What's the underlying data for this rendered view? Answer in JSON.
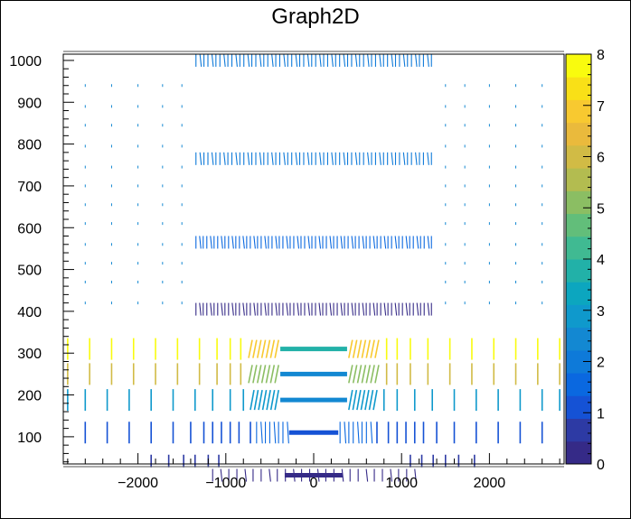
{
  "chart_data": {
    "type": "scatter",
    "title": "Graph2D",
    "xlabel": "",
    "ylabel": "",
    "xlim": [
      -2850,
      2850
    ],
    "ylim": [
      35,
      1015
    ],
    "zlim": [
      0,
      8
    ],
    "x_ticks": [
      -2000,
      -1000,
      0,
      1000,
      2000
    ],
    "x_tick_labels": [
      "−2000",
      "−1000",
      "0",
      "1000",
      "2000"
    ],
    "y_ticks": [
      100,
      200,
      300,
      400,
      500,
      600,
      700,
      800,
      900,
      1000
    ],
    "y_tick_labels": [
      "100",
      "200",
      "300",
      "400",
      "500",
      "600",
      "700",
      "800",
      "900",
      "1000"
    ],
    "colorbar_ticks": [
      0,
      1,
      2,
      3,
      4,
      5,
      6,
      7,
      8
    ],
    "colorbar_tick_labels": [
      "0",
      "1",
      "2",
      "3",
      "4",
      "5",
      "6",
      "7",
      "8"
    ],
    "palette": [
      "#352a87",
      "#2d3aa4",
      "#1552d5",
      "#0a68e0",
      "#0e7ad9",
      "#1388d2",
      "#0f99cc",
      "#0ca6bf",
      "#22b1a8",
      "#40ba92",
      "#62be7a",
      "#8bbe63",
      "#b3bc50",
      "#d1bb45",
      "#eaba3c",
      "#f8c930",
      "#f9e017",
      "#f9fb0e"
    ],
    "grid": false,
    "legend": "colorbar-right",
    "rows": [
      {
        "y": 8,
        "z": 0.4,
        "kind": "dense",
        "xmin": -1150,
        "xmax": 1150,
        "n": 26,
        "len": 14
      },
      {
        "y": 8,
        "z": 0.4,
        "kind": "band",
        "xmin": -330,
        "xmax": 330,
        "len": 14
      },
      {
        "y": 42,
        "z": 0.7,
        "kind": "sparse",
        "xs": [
          -1850,
          -1650,
          -1480,
          -1350,
          -1200,
          -1080,
          1100,
          1230,
          1360,
          1500,
          1650,
          1830
        ],
        "len": 14
      },
      {
        "y": 110,
        "z": 1.2,
        "kind": "sparse",
        "xs": [
          -2600,
          -2350,
          -2100,
          -1850,
          -1600,
          -1400,
          -1250,
          -1150,
          -1050,
          -950,
          -850,
          -720,
          720,
          850,
          950,
          1050,
          1150,
          1250,
          1400,
          1600,
          1850,
          2100,
          2350,
          2600
        ],
        "len": 24
      },
      {
        "y": 110,
        "z": 1.6,
        "kind": "dense",
        "xmin": -650,
        "xmax": -300,
        "n": 8,
        "len": 24
      },
      {
        "y": 110,
        "z": 1.6,
        "kind": "dense",
        "xmin": 300,
        "xmax": 650,
        "n": 8,
        "len": 24
      },
      {
        "y": 110,
        "z": 1.3,
        "kind": "band",
        "xmin": -280,
        "xmax": 280,
        "len": 24
      },
      {
        "y": 188,
        "z": 3.1,
        "kind": "sparse",
        "xs": [
          -2800,
          -2600,
          -2350,
          -2100,
          -1850,
          -1600,
          -1350,
          -1150,
          -950,
          -800,
          800,
          950,
          1150,
          1350,
          1600,
          1850,
          2100,
          2350,
          2600,
          2800
        ],
        "len": 24
      },
      {
        "y": 188,
        "z": 3.0,
        "kind": "slant",
        "xmin": -700,
        "xmax": -420,
        "n": 7,
        "len": 22
      },
      {
        "y": 188,
        "z": 3.0,
        "kind": "slant",
        "xmin": 420,
        "xmax": 700,
        "n": 7,
        "len": 22
      },
      {
        "y": 188,
        "z": 2.4,
        "kind": "band",
        "xmin": -380,
        "xmax": 380,
        "len": 24
      },
      {
        "y": 250,
        "z": 6.1,
        "kind": "sparse",
        "xs": [
          -2800,
          -2550,
          -2300,
          -2050,
          -1800,
          -1550,
          -1300,
          -1100,
          -950,
          -830,
          830,
          950,
          1100,
          1300,
          1550,
          1800,
          2050,
          2300,
          2550,
          2800
        ],
        "len": 24
      },
      {
        "y": 250,
        "z": 5.0,
        "kind": "slant",
        "xmin": -720,
        "xmax": -420,
        "n": 7,
        "len": 20
      },
      {
        "y": 250,
        "z": 5.0,
        "kind": "slant",
        "xmin": 420,
        "xmax": 720,
        "n": 7,
        "len": 20
      },
      {
        "y": 250,
        "z": 2.6,
        "kind": "band",
        "xmin": -380,
        "xmax": 380,
        "len": 24
      },
      {
        "y": 310,
        "z": 7.8,
        "kind": "sparse",
        "xs": [
          -2800,
          -2550,
          -2300,
          -2050,
          -1800,
          -1550,
          -1300,
          -1100,
          -950,
          -830,
          830,
          950,
          1100,
          1300,
          1550,
          1800,
          2050,
          2300,
          2550,
          2800
        ],
        "len": 24
      },
      {
        "y": 310,
        "z": 6.8,
        "kind": "slant",
        "xmin": -720,
        "xmax": -420,
        "n": 7,
        "len": 20
      },
      {
        "y": 310,
        "z": 6.8,
        "kind": "slant",
        "xmin": 420,
        "xmax": 720,
        "n": 7,
        "len": 20
      },
      {
        "y": 310,
        "z": 3.9,
        "kind": "band",
        "xmin": -380,
        "xmax": 380,
        "len": 24
      },
      {
        "y": 405,
        "z": 0.4,
        "kind": "dense",
        "xmin": -1340,
        "xmax": 1340,
        "n": 66,
        "len": 14
      },
      {
        "y": 565,
        "z": 1.5,
        "kind": "dense",
        "xmin": -1340,
        "xmax": 1340,
        "n": 66,
        "len": 14
      },
      {
        "y": 765,
        "z": 1.9,
        "kind": "dense",
        "xmin": -1340,
        "xmax": 1340,
        "n": 60,
        "len": 14
      },
      {
        "y": 1000,
        "z": 2.1,
        "kind": "dense",
        "xmin": -1340,
        "xmax": 1340,
        "n": 60,
        "len": 14
      },
      {
        "y": 350,
        "z": 2.3,
        "kind": "dots",
        "xs": [
          -2600,
          -2300,
          -2000,
          -1720,
          -1500,
          1500,
          1720,
          2000,
          2300,
          2600
        ],
        "ys": [
          940,
          890,
          845,
          795,
          745,
          700,
          655,
          610,
          560,
          515,
          470,
          420
        ]
      }
    ]
  }
}
